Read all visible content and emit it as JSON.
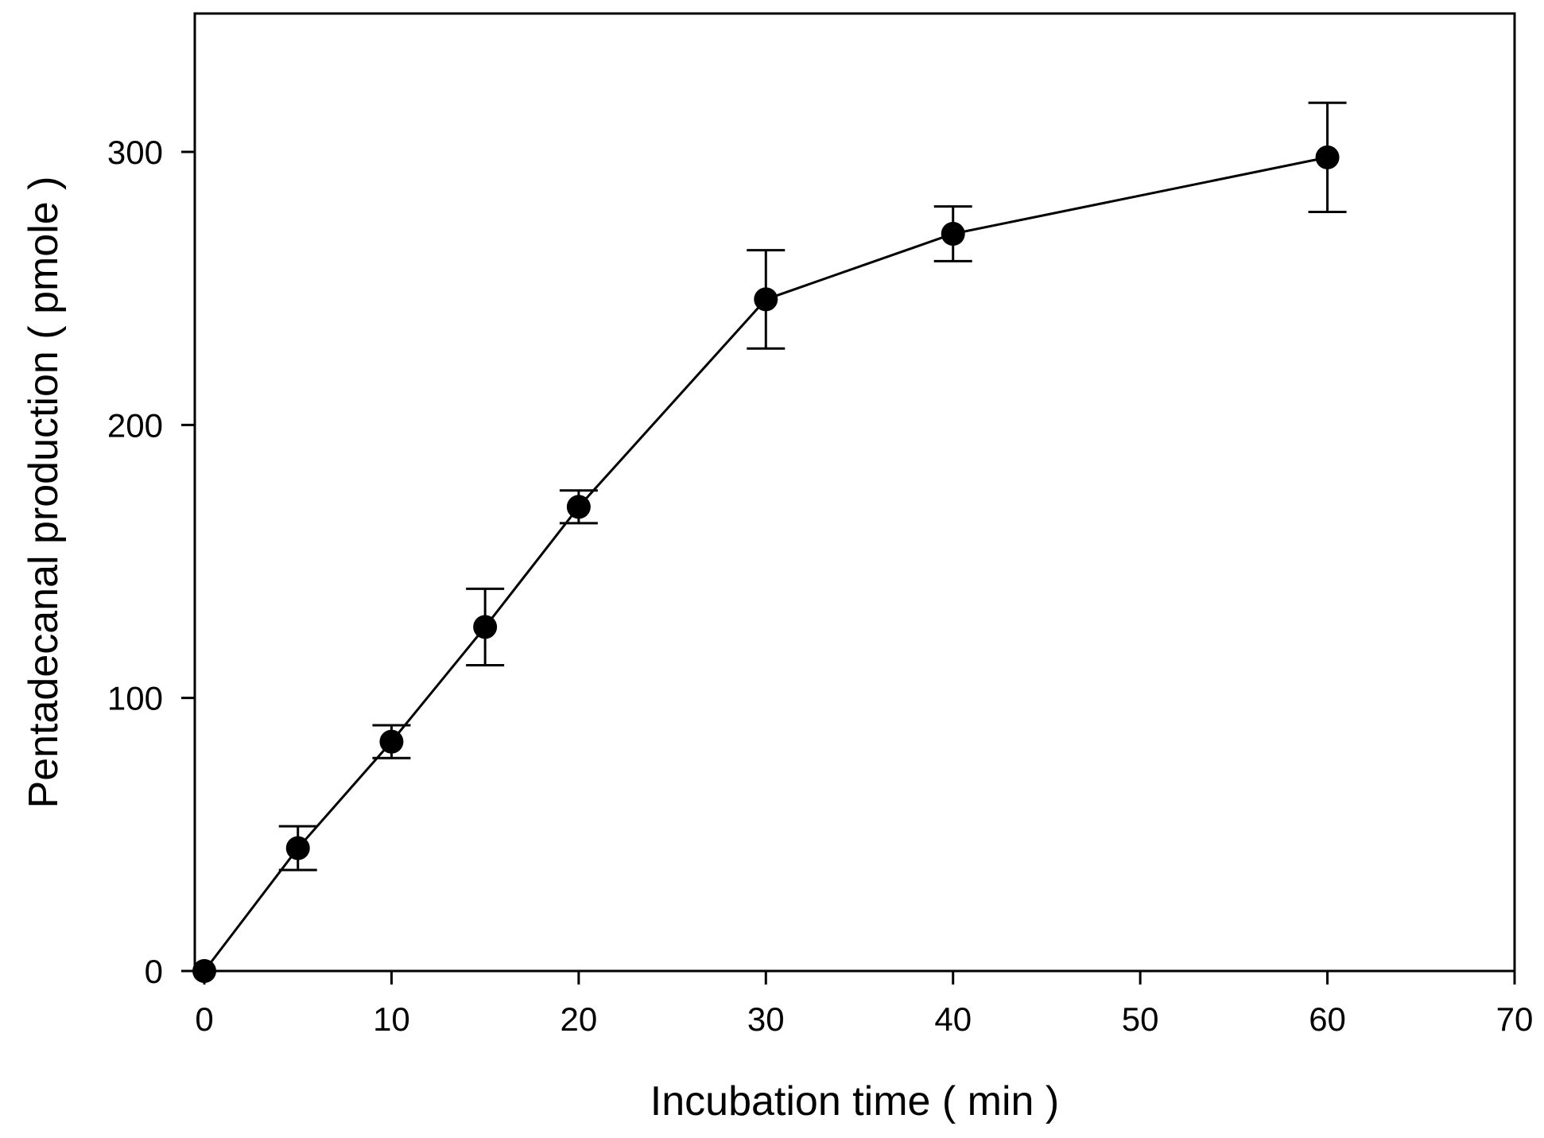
{
  "chart_data": {
    "type": "line",
    "title": "",
    "xlabel": "Incubation time ( min )",
    "ylabel": "Pentadecanal production ( pmole )",
    "xlim": [
      -1,
      70
    ],
    "ylim": [
      0,
      350
    ],
    "xticks": [
      0,
      10,
      20,
      30,
      40,
      50,
      60,
      70
    ],
    "yticks": [
      0,
      100,
      200,
      300
    ],
    "grid": false,
    "marker": "filled-circle",
    "series": [
      {
        "name": "Pentadecanal production",
        "x": [
          0,
          5,
          10,
          15,
          20,
          30,
          40,
          60
        ],
        "y": [
          0,
          45,
          84,
          126,
          170,
          246,
          270,
          298
        ],
        "error": [
          0,
          8,
          6,
          14,
          6,
          18,
          10,
          20
        ]
      }
    ]
  }
}
